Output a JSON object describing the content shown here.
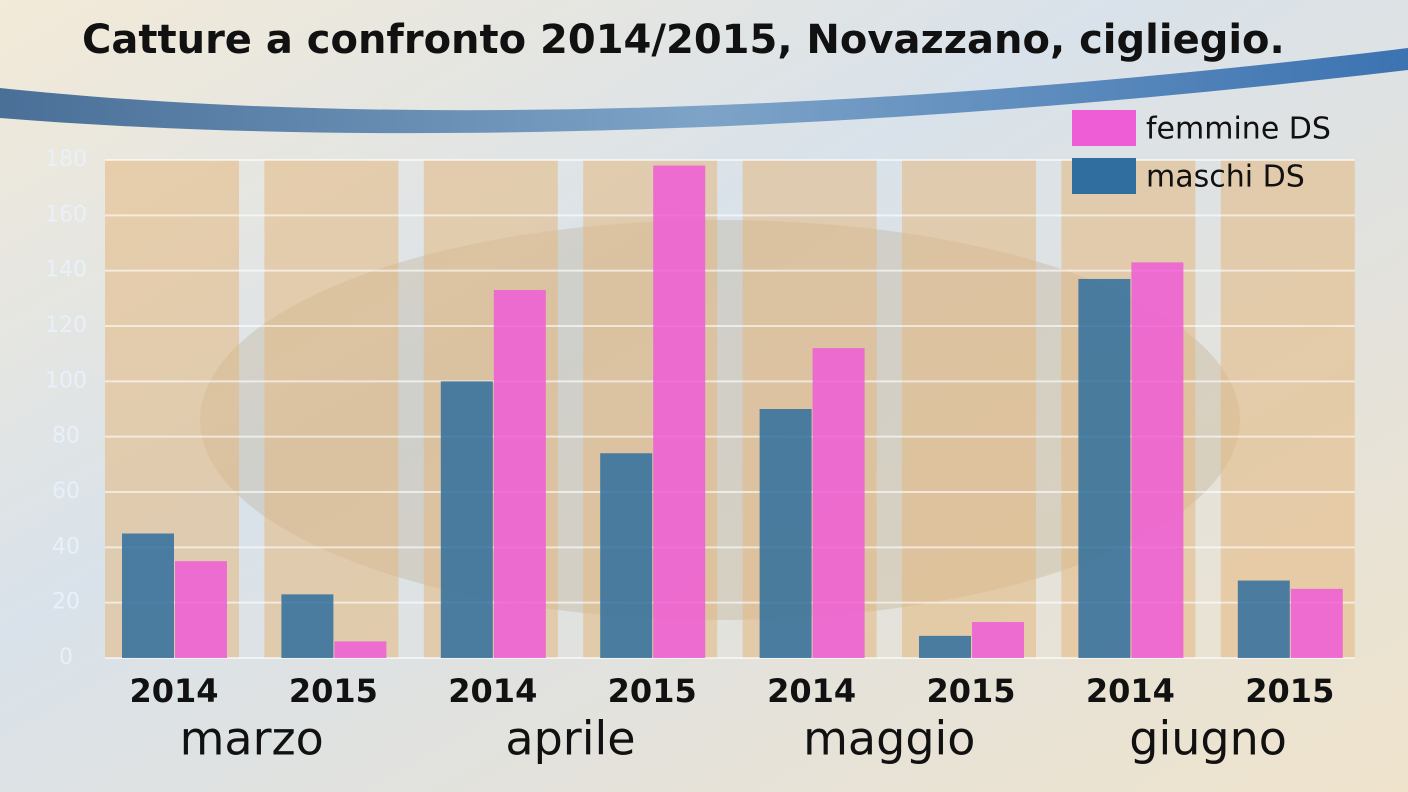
{
  "chart_data": {
    "type": "bar",
    "title": "Catture a confronto 2014/2015, Novazzano, cigliegio.",
    "categories": [
      "2014",
      "2015",
      "2014",
      "2015",
      "2014",
      "2015",
      "2014",
      "2015"
    ],
    "groups": [
      "marzo",
      "aprile",
      "maggio",
      "giugno"
    ],
    "series": [
      {
        "name": "maschi DS",
        "color": "#2f6e9e",
        "values": [
          45,
          23,
          100,
          74,
          90,
          8,
          137,
          28
        ]
      },
      {
        "name": "femmine DS",
        "color": "#ee5cd6",
        "values": [
          35,
          6,
          133,
          178,
          112,
          13,
          143,
          25
        ]
      }
    ],
    "ylim": [
      0,
      180
    ],
    "yticks": [
      0,
      20,
      40,
      60,
      80,
      100,
      120,
      140,
      160,
      180
    ],
    "grid": true
  }
}
